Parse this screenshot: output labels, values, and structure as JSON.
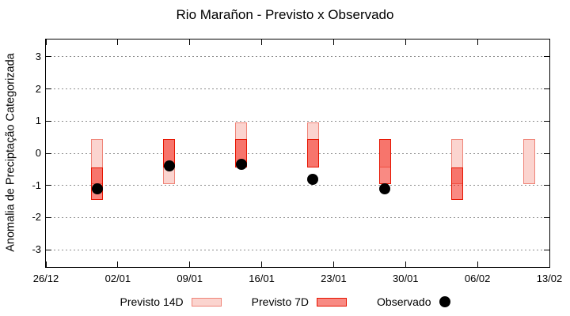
{
  "chart_data": {
    "type": "range-bar",
    "title": "Rio Marañon - Previsto x Observado",
    "ylabel": "Anomalia de Preciptação Categorizada",
    "x_tick_labels": [
      "26/12",
      "02/01",
      "09/01",
      "16/01",
      "23/01",
      "30/01",
      "06/02",
      "13/02"
    ],
    "x_tick_days": [
      0,
      7,
      14,
      21,
      28,
      35,
      42,
      49
    ],
    "x_day_range": [
      0,
      49
    ],
    "y_ticks": [
      -3,
      -2,
      -1,
      0,
      1,
      2,
      3
    ],
    "ylim": [
      -3.54,
      3.54
    ],
    "grid": "horizontal-dashed",
    "legend_position": "bottom-center",
    "series": {
      "previsto_14d": {
        "label": "Previsto 14D",
        "ranges": [
          {
            "day": 5,
            "min": -0.95,
            "max": 0.45
          },
          {
            "day": 12,
            "min": -0.95,
            "max": 0.45
          },
          {
            "day": 19,
            "min": -0.45,
            "max": 0.95
          },
          {
            "day": 26,
            "min": -0.45,
            "max": 0.95
          },
          {
            "day": 33,
            "min": -0.45,
            "max": 0.45
          },
          {
            "day": 40,
            "min": -0.95,
            "max": 0.45
          },
          {
            "day": 47,
            "min": -0.95,
            "max": 0.45
          }
        ]
      },
      "previsto_7d": {
        "label": "Previsto 7D",
        "ranges": [
          {
            "day": 5,
            "min": -1.45,
            "max": -0.45
          },
          {
            "day": 12,
            "min": -0.45,
            "max": 0.45
          },
          {
            "day": 19,
            "min": -0.45,
            "max": 0.45
          },
          {
            "day": 26,
            "min": -0.45,
            "max": 0.45
          },
          {
            "day": 33,
            "min": -0.95,
            "max": 0.45
          },
          {
            "day": 40,
            "min": -1.45,
            "max": -0.45
          }
        ]
      },
      "observado": {
        "label": "Observado",
        "points": [
          {
            "day": 5,
            "value": -1.1
          },
          {
            "day": 12,
            "value": -0.4
          },
          {
            "day": 19,
            "value": -0.35
          },
          {
            "day": 26,
            "value": -0.8
          },
          {
            "day": 33,
            "value": -1.1
          }
        ]
      }
    },
    "colors": {
      "previsto_14d_fill": "#fbd4cf",
      "previsto_14d_border": "#ef8478",
      "previsto_7d_fill": "rgba(243,30,18,0.52)",
      "previsto_7d_fill_solid": "#f88a83",
      "previsto_7d_border": "#e61400",
      "observado": "#000000",
      "grid": "#8c8c8c",
      "axis": "#000000",
      "background": "#ffffff"
    }
  }
}
